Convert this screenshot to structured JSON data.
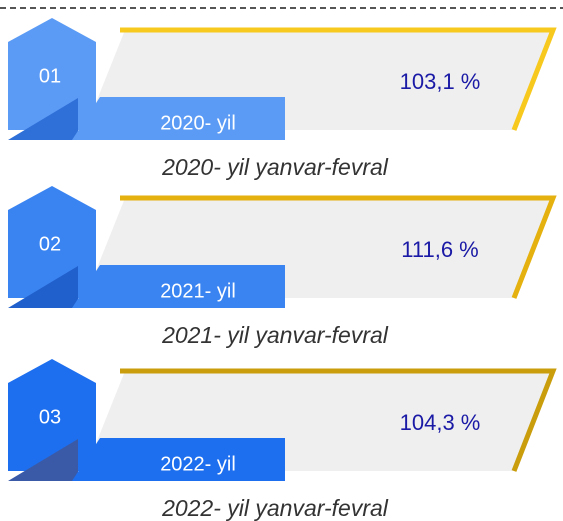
{
  "items": [
    {
      "number": "01",
      "year": "2020- yil",
      "value": "103,1 %",
      "caption": "2020- yil yanvar-fevral"
    },
    {
      "number": "02",
      "year": "2021- yil",
      "value": "111,6 %",
      "caption": "2021- yil yanvar-fevral"
    },
    {
      "number": "03",
      "year": "2022- yil",
      "value": "104,3 %",
      "caption": "2022- yil yanvar-fevral"
    }
  ]
}
